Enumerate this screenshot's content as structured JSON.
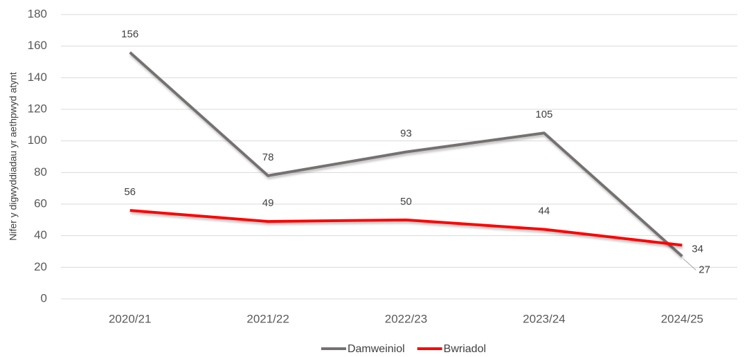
{
  "chart_data": {
    "type": "line",
    "y_label": "Nifer y digwyddiadau yr aethpwyd atynt",
    "categories": [
      "2020/21",
      "2021/22",
      "2022/23",
      "2023/24",
      "2024/25"
    ],
    "series": [
      {
        "name": "Damweiniol",
        "color": "#767171",
        "values": [
          156,
          78,
          93,
          105,
          27
        ]
      },
      {
        "name": "Bwriadol",
        "color": "#ff0000",
        "values": [
          56,
          49,
          50,
          44,
          34
        ]
      }
    ],
    "ylim": [
      0,
      180
    ],
    "yticks": [
      0,
      20,
      40,
      60,
      80,
      100,
      120,
      140,
      160,
      180
    ],
    "grid": true,
    "legend": "bottom"
  }
}
